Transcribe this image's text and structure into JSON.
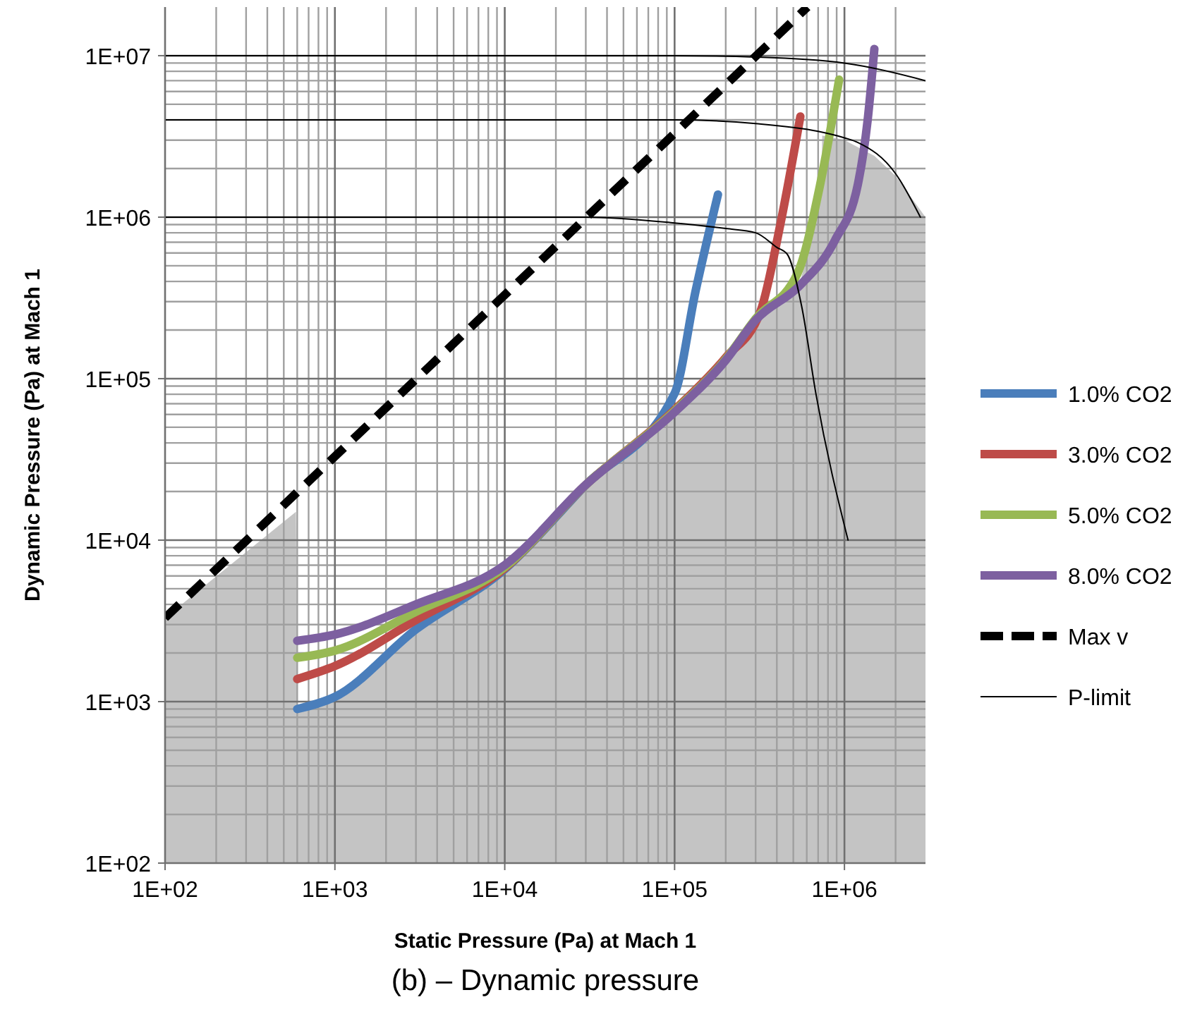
{
  "chart_data": {
    "type": "line",
    "xlabel": "Static Pressure (Pa) at Mach 1",
    "ylabel": "Dynamic Pressure (Pa) at Mach 1",
    "log": "xy",
    "grid": true,
    "legend": "right",
    "xlim": [
      100,
      3000000
    ],
    "ylim": [
      100,
      20000000
    ],
    "xticks": [
      {
        "value": 100,
        "label": "1E+02"
      },
      {
        "value": 1000,
        "label": "1E+03"
      },
      {
        "value": 10000,
        "label": "1E+04"
      },
      {
        "value": 100000,
        "label": "1E+05"
      },
      {
        "value": 1000000,
        "label": "1E+06"
      }
    ],
    "yticks": [
      {
        "value": 100,
        "label": "1E+02"
      },
      {
        "value": 1000,
        "label": "1E+03"
      },
      {
        "value": 10000,
        "label": "1E+04"
      },
      {
        "value": 100000,
        "label": "1E+05"
      },
      {
        "value": 1000000,
        "label": "1E+06"
      },
      {
        "value": 10000000,
        "label": "1E+07"
      }
    ],
    "annotations": [
      "(b)  – Dynamic pressure"
    ],
    "series": [
      {
        "type": "area",
        "color": "#c4c4c4",
        "x": [
          100,
          590,
          600,
          1000,
          3000,
          10000,
          30000,
          100000,
          200000,
          300000,
          550000,
          730000,
          740000,
          1000000,
          1500000,
          2000000,
          3000000
        ],
        "values": [
          3300,
          15000,
          900,
          1070,
          2800,
          6600,
          22000,
          62000,
          130000,
          230000,
          400000,
          1300000,
          3200000,
          3000000,
          2400000,
          1800000,
          1000000
        ]
      },
      {
        "name": "1.0% CO2",
        "color": "#4a7ebb",
        "x": [
          600,
          1000,
          3000,
          10000,
          30000,
          100000,
          133000,
          180000
        ],
        "values": [
          900,
          1070,
          2800,
          6600,
          22000,
          81000,
          350000,
          1380000
        ]
      },
      {
        "name": "3.0% CO2",
        "color": "#be4b48",
        "x": [
          600,
          1000,
          3000,
          10000,
          30000,
          100000,
          200000,
          320000,
          420000,
          550000
        ],
        "values": [
          1380,
          1660,
          3200,
          6700,
          22000,
          64000,
          135000,
          260000,
          910000,
          4200000
        ]
      },
      {
        "name": "5.0% CO2",
        "color": "#98b954",
        "x": [
          600,
          1000,
          3000,
          10000,
          30000,
          100000,
          200000,
          300000,
          530000,
          720000,
          930000
        ],
        "values": [
          1870,
          2070,
          3600,
          6800,
          22000,
          63000,
          132000,
          235000,
          450000,
          1600000,
          7100000
        ]
      },
      {
        "name": "8.0% CO2",
        "color": "#7d60a0",
        "x": [
          600,
          1000,
          3000,
          10000,
          30000,
          100000,
          200000,
          300000,
          550000,
          880000,
          1200000,
          1370000,
          1500000
        ],
        "values": [
          2380,
          2600,
          4000,
          7000,
          22000,
          62000,
          130000,
          230000,
          380000,
          720000,
          1600000,
          4000000,
          11000000
        ]
      },
      {
        "name": "Max v",
        "color": "#000000",
        "line_style": "dashed",
        "x": [
          100,
          606000
        ],
        "values": [
          3300,
          20000000
        ]
      },
      {
        "name": "P-limit",
        "color": "#000000",
        "x": [
          100,
          100000,
          300000,
          1000000,
          3000000
        ],
        "values": [
          10000000,
          10000000,
          9800000,
          9000000,
          7000000
        ]
      },
      {
        "color": "#000000",
        "x": [
          100,
          100000,
          300000,
          700000,
          1000000,
          1200000,
          2000000,
          2800000
        ],
        "values": [
          4000000,
          4000000,
          3800000,
          3400000,
          3100000,
          2900000,
          1860000,
          1000000
        ]
      },
      {
        "color": "#000000",
        "x": [
          100,
          30000,
          100000,
          200000,
          300000,
          400000,
          460000,
          560000,
          680000,
          1050000
        ],
        "values": [
          1000000,
          1000000,
          920000,
          850000,
          800000,
          650000,
          590000,
          280000,
          80000,
          10000
        ]
      }
    ]
  }
}
